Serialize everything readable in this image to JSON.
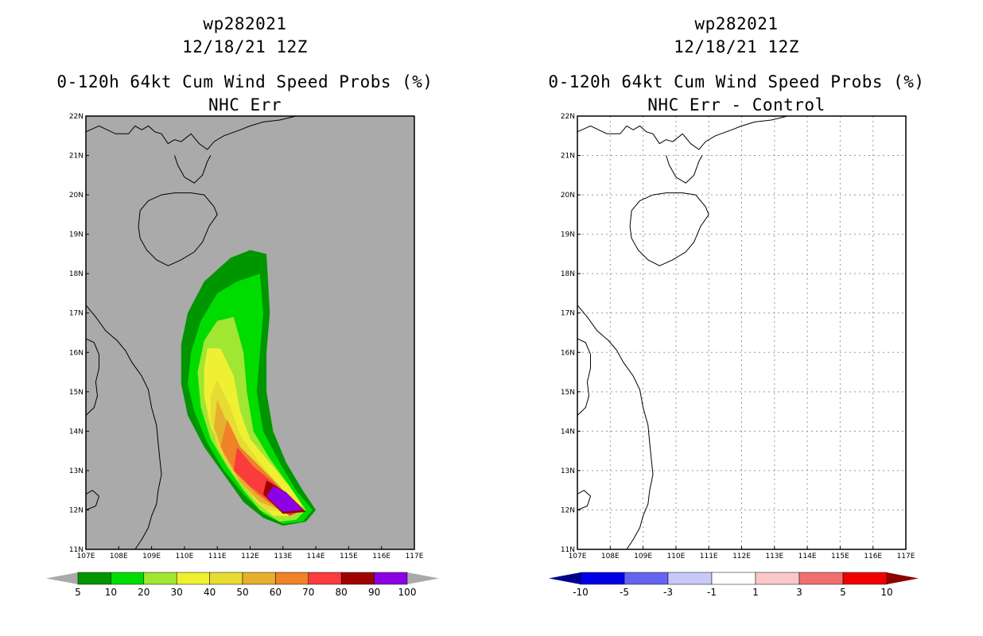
{
  "chart_data": [
    {
      "type": "contour",
      "storm_id": "wp282021",
      "datetime": "12/18/21 12Z",
      "title": "0-120h 64kt Cum Wind Speed Probs (%)",
      "subtitle": "NHC Err",
      "x_ticks": [
        "107E",
        "108E",
        "109E",
        "110E",
        "111E",
        "112E",
        "113E",
        "114E",
        "115E",
        "116E",
        "117E"
      ],
      "y_ticks": [
        "11N",
        "12N",
        "13N",
        "14N",
        "15N",
        "16N",
        "17N",
        "18N",
        "19N",
        "20N",
        "21N",
        "22N"
      ],
      "xlim": [
        107,
        117
      ],
      "ylim": [
        11,
        22
      ],
      "colorbar": {
        "labels": [
          "5",
          "10",
          "20",
          "30",
          "40",
          "50",
          "60",
          "70",
          "80",
          "90",
          "100"
        ],
        "colors": [
          "#009600",
          "#00dc00",
          "#a0e632",
          "#f0f032",
          "#e6dc32",
          "#e6af2d",
          "#f08228",
          "#fa3c3c",
          "#a00000",
          "#8c00e6"
        ],
        "under_color": "#aaaaaa",
        "over_color": "#aaaaaa"
      },
      "background_color": "#aaaaaa",
      "contours": [
        {
          "level": 5,
          "color": "#009600",
          "polygon": [
            [
              112.5,
              18.5
            ],
            [
              112.6,
              17.0
            ],
            [
              112.5,
              16.0
            ],
            [
              112.5,
              15.0
            ],
            [
              112.7,
              14.0
            ],
            [
              113.1,
              13.2
            ],
            [
              113.6,
              12.5
            ],
            [
              114.0,
              12.0
            ],
            [
              113.7,
              11.7
            ],
            [
              113.0,
              11.6
            ],
            [
              112.4,
              11.8
            ],
            [
              111.8,
              12.2
            ],
            [
              111.2,
              12.9
            ],
            [
              110.6,
              13.6
            ],
            [
              110.1,
              14.4
            ],
            [
              109.9,
              15.2
            ],
            [
              109.9,
              16.2
            ],
            [
              110.1,
              17.0
            ],
            [
              110.6,
              17.8
            ],
            [
              111.4,
              18.4
            ],
            [
              112.0,
              18.6
            ]
          ]
        },
        {
          "level": 10,
          "color": "#00dc00",
          "polygon": [
            [
              112.3,
              18.0
            ],
            [
              112.4,
              17.0
            ],
            [
              112.3,
              16.0
            ],
            [
              112.2,
              15.0
            ],
            [
              112.4,
              14.0
            ],
            [
              112.9,
              13.2
            ],
            [
              113.4,
              12.5
            ],
            [
              113.9,
              12.0
            ],
            [
              113.6,
              11.7
            ],
            [
              113.0,
              11.65
            ],
            [
              112.4,
              11.9
            ],
            [
              111.8,
              12.4
            ],
            [
              111.2,
              13.0
            ],
            [
              110.7,
              13.7
            ],
            [
              110.3,
              14.5
            ],
            [
              110.1,
              15.2
            ],
            [
              110.2,
              16.0
            ],
            [
              110.5,
              16.8
            ],
            [
              111.0,
              17.5
            ],
            [
              111.6,
              17.8
            ]
          ]
        },
        {
          "level": 20,
          "color": "#a0e632",
          "polygon": [
            [
              111.5,
              16.9
            ],
            [
              111.8,
              16.0
            ],
            [
              111.9,
              15.0
            ],
            [
              112.1,
              14.0
            ],
            [
              112.6,
              13.3
            ],
            [
              113.2,
              12.6
            ],
            [
              113.7,
              12.0
            ],
            [
              113.4,
              11.75
            ],
            [
              112.9,
              11.7
            ],
            [
              112.3,
              12.0
            ],
            [
              111.8,
              12.5
            ],
            [
              111.3,
              13.1
            ],
            [
              110.8,
              13.8
            ],
            [
              110.5,
              14.6
            ],
            [
              110.4,
              15.5
            ],
            [
              110.6,
              16.3
            ],
            [
              111.0,
              16.8
            ]
          ]
        },
        {
          "level": 30,
          "color": "#f0f032",
          "polygon": [
            [
              111.1,
              16.1
            ],
            [
              111.5,
              15.4
            ],
            [
              111.7,
              14.5
            ],
            [
              112.0,
              13.8
            ],
            [
              112.6,
              13.2
            ],
            [
              113.2,
              12.6
            ],
            [
              113.6,
              12.1
            ],
            [
              113.2,
              11.85
            ],
            [
              112.7,
              11.85
            ],
            [
              112.2,
              12.2
            ],
            [
              111.7,
              12.7
            ],
            [
              111.2,
              13.4
            ],
            [
              110.8,
              14.1
            ],
            [
              110.6,
              14.9
            ],
            [
              110.6,
              15.6
            ],
            [
              110.7,
              16.1
            ]
          ]
        },
        {
          "level": 40,
          "color": "#e6dc32",
          "polygon": [
            [
              111.0,
              15.3
            ],
            [
              111.4,
              14.6
            ],
            [
              111.7,
              13.9
            ],
            [
              112.2,
              13.3
            ],
            [
              112.8,
              12.7
            ],
            [
              113.3,
              12.2
            ],
            [
              113.0,
              11.95
            ],
            [
              112.5,
              12.0
            ],
            [
              112.0,
              12.4
            ],
            [
              111.5,
              12.9
            ],
            [
              111.0,
              13.6
            ],
            [
              110.8,
              14.3
            ],
            [
              110.8,
              14.9
            ]
          ]
        },
        {
          "level": 50,
          "color": "#e6af2d",
          "polygon": [
            [
              111.0,
              14.8
            ],
            [
              111.3,
              14.2
            ],
            [
              111.7,
              13.6
            ],
            [
              112.3,
              13.1
            ],
            [
              112.9,
              12.6
            ],
            [
              113.3,
              12.2
            ],
            [
              112.9,
              12.0
            ],
            [
              112.3,
              12.2
            ],
            [
              111.7,
              12.7
            ],
            [
              111.2,
              13.4
            ],
            [
              110.9,
              14.1
            ]
          ]
        },
        {
          "level": 60,
          "color": "#f08228",
          "polygon": [
            [
              111.3,
              14.3
            ],
            [
              111.7,
              13.6
            ],
            [
              112.3,
              13.1
            ],
            [
              112.9,
              12.6
            ],
            [
              113.3,
              12.2
            ],
            [
              112.8,
              12.05
            ],
            [
              112.2,
              12.4
            ],
            [
              111.6,
              12.9
            ],
            [
              111.1,
              13.6
            ]
          ]
        },
        {
          "level": 70,
          "color": "#fa3c3c",
          "polygon": [
            [
              111.6,
              13.6
            ],
            [
              112.1,
              13.1
            ],
            [
              112.7,
              12.7
            ],
            [
              113.2,
              12.3
            ],
            [
              113.6,
              12.0
            ],
            [
              113.2,
              11.85
            ],
            [
              112.6,
              12.2
            ],
            [
              112.0,
              12.6
            ],
            [
              111.5,
              13.0
            ]
          ]
        },
        {
          "level": 80,
          "color": "#a00000",
          "polygon": [
            [
              112.5,
              12.75
            ],
            [
              113.1,
              12.45
            ],
            [
              113.7,
              11.95
            ],
            [
              113.0,
              11.9
            ],
            [
              112.4,
              12.4
            ]
          ]
        },
        {
          "level": 90,
          "color": "#8c00e6",
          "polygon": [
            [
              112.7,
              12.6
            ],
            [
              113.1,
              12.45
            ],
            [
              113.6,
              12.0
            ],
            [
              113.0,
              11.95
            ],
            [
              112.5,
              12.35
            ]
          ]
        }
      ]
    },
    {
      "type": "contour",
      "storm_id": "wp282021",
      "datetime": "12/18/21 12Z",
      "title": "0-120h 64kt Cum Wind Speed Probs (%)",
      "subtitle": "NHC Err - Control",
      "x_ticks": [
        "107E",
        "108E",
        "109E",
        "110E",
        "111E",
        "112E",
        "113E",
        "114E",
        "115E",
        "116E",
        "117E"
      ],
      "y_ticks": [
        "11N",
        "12N",
        "13N",
        "14N",
        "15N",
        "16N",
        "17N",
        "18N",
        "19N",
        "20N",
        "21N",
        "22N"
      ],
      "xlim": [
        107,
        117
      ],
      "ylim": [
        11,
        22
      ],
      "grid": true,
      "colorbar": {
        "labels": [
          "-10",
          "-5",
          "-3",
          "-1",
          "1",
          "3",
          "5",
          "10"
        ],
        "colors": [
          "#0000e6",
          "#6464f0",
          "#c8c8fa",
          "#ffffff",
          "#fac8c8",
          "#f07070",
          "#f00000"
        ],
        "under_color": "#00008c",
        "over_color": "#8c0000"
      },
      "background_color": "#ffffff",
      "contours": []
    }
  ]
}
